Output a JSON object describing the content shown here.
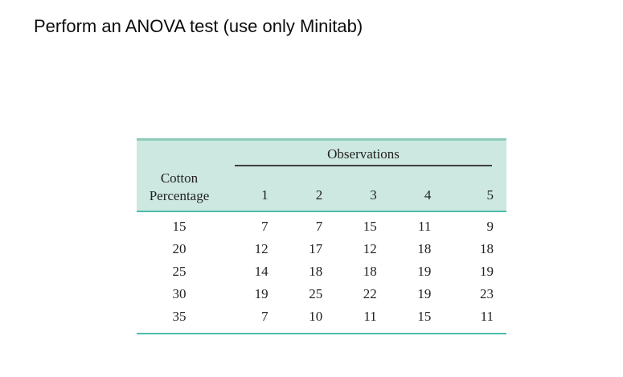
{
  "title": "Perform an ANOVA test (use only Minitab)",
  "table": {
    "span_header": "Observations",
    "row_header": {
      "line1": "Cotton",
      "line2": "Percentage"
    },
    "columns": [
      "1",
      "2",
      "3",
      "4",
      "5"
    ],
    "rows": [
      {
        "cotton_percentage": "15",
        "values": [
          "7",
          "7",
          "15",
          "11",
          "9"
        ]
      },
      {
        "cotton_percentage": "20",
        "values": [
          "12",
          "17",
          "12",
          "18",
          "18"
        ]
      },
      {
        "cotton_percentage": "25",
        "values": [
          "14",
          "18",
          "18",
          "19",
          "19"
        ]
      },
      {
        "cotton_percentage": "30",
        "values": [
          "19",
          "25",
          "22",
          "19",
          "23"
        ]
      },
      {
        "cotton_percentage": "35",
        "values": [
          "7",
          "10",
          "11",
          "15",
          "11"
        ]
      }
    ]
  },
  "colors": {
    "header_bg": "#cde8e0",
    "table_top_border": "#8fcbba",
    "teal_rule": "#4dbdab",
    "observations_rule": "#3f3f3f"
  }
}
